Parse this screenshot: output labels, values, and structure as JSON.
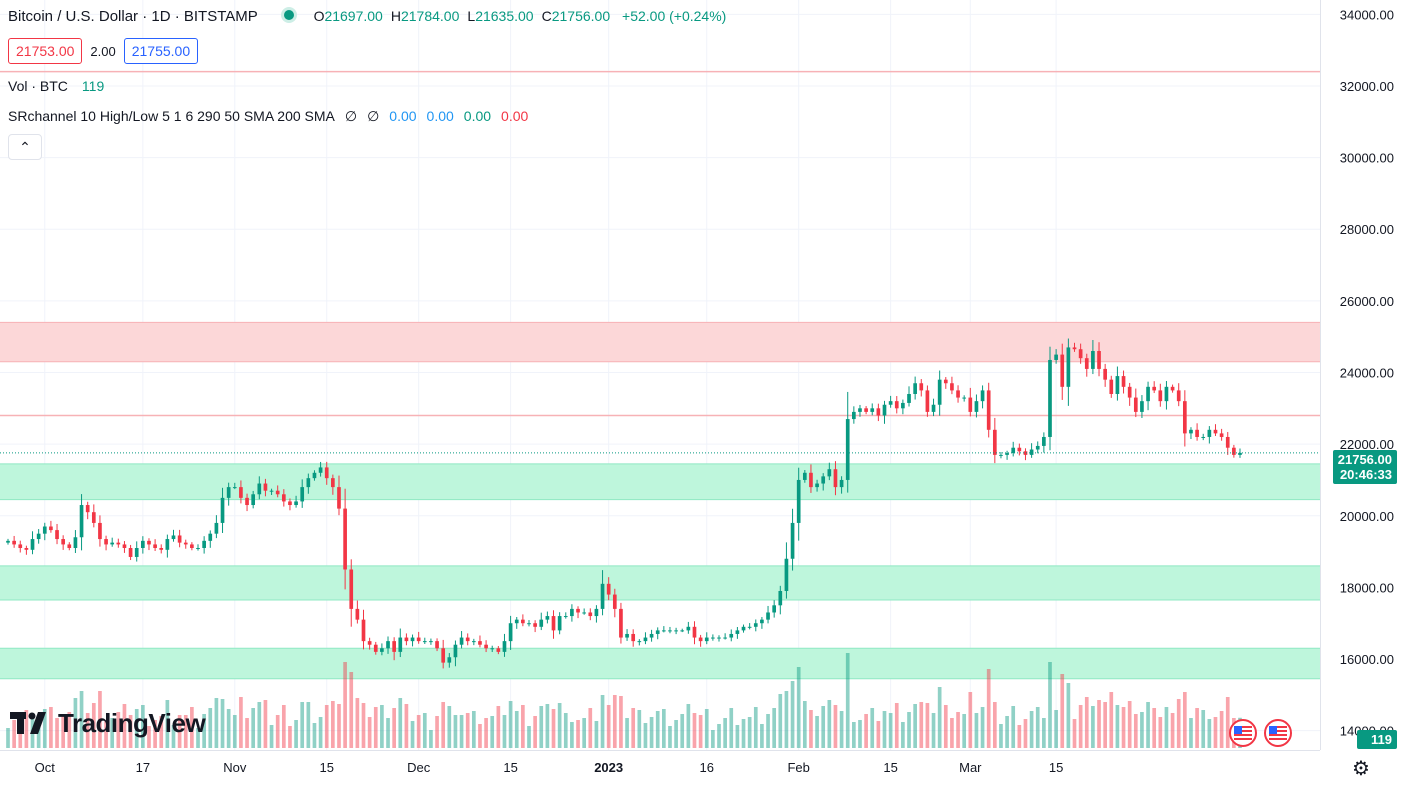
{
  "header": {
    "symbol": "Bitcoin / U.S. Dollar · 1D · BITSTAMP",
    "ohlc": [
      {
        "k": "O",
        "v": "21697.00"
      },
      {
        "k": "H",
        "v": "21784.00"
      },
      {
        "k": "L",
        "v": "21635.00"
      },
      {
        "k": "C",
        "v": "21756.00"
      }
    ],
    "change": "+52.00 (+0.24%)",
    "sell_price": "21753.00",
    "spread": "2.00",
    "buy_price": "21755.00",
    "collapse_icon": "chevron-up-icon",
    "colors": {
      "up": "#089981",
      "down": "#f23645",
      "buy": "#2962ff"
    }
  },
  "indicators": {
    "volume": {
      "label": "Vol · BTC",
      "value": "119"
    },
    "srchannel": {
      "label": "SRchannel 10 High/Low 5 1 6 290 50 SMA 200 SMA",
      "values": [
        {
          "text": "∅",
          "color": "#131722"
        },
        {
          "text": "∅",
          "color": "#131722"
        },
        {
          "text": "0.00",
          "color": "#2196f3"
        },
        {
          "text": "0.00",
          "color": "#2196f3"
        },
        {
          "text": "0.00",
          "color": "#089981"
        },
        {
          "text": "0.00",
          "color": "#f23645"
        }
      ]
    }
  },
  "branding": {
    "name": "TradingView"
  },
  "price_axis": {
    "last_price": "21756.00",
    "countdown": "20:46:33",
    "volume_tag": "119",
    "settings_icon": "gear-icon"
  },
  "event_icons": [
    "us-flag-icon",
    "us-flag-icon"
  ],
  "chart_data": {
    "type": "candlestick",
    "y_ticks": [
      "34000.00",
      "32000.00",
      "30000.00",
      "28000.00",
      "26000.00",
      "24000.00",
      "22000.00",
      "20000.00",
      "18000.00",
      "16000.00",
      "14000.00"
    ],
    "ylim": [
      13600,
      34400
    ],
    "x_ticks": [
      "Oct",
      "17",
      "Nov",
      "15",
      "Dec",
      "15",
      "2023",
      "16",
      "Feb",
      "15",
      "Mar",
      "15"
    ],
    "zones": [
      {
        "from": 24300,
        "to": 25400,
        "color": "#fcd5d6"
      },
      {
        "from": 20450,
        "to": 21450,
        "color": "#baf5da"
      },
      {
        "from": 17650,
        "to": 18600,
        "color": "#baf5da"
      },
      {
        "from": 15450,
        "to": 16300,
        "color": "#baf5da"
      }
    ],
    "levels": [
      {
        "value": 32400,
        "color": "#f7b2b6"
      },
      {
        "value": 22800,
        "color": "#f7b2b6"
      }
    ],
    "last_close": 21756,
    "closes": [
      19300,
      19200,
      19100,
      19050,
      19350,
      19500,
      19700,
      19600,
      19350,
      19200,
      19100,
      19400,
      20300,
      20100,
      19800,
      19350,
      19200,
      19250,
      19200,
      19100,
      18850,
      19100,
      19300,
      19200,
      19100,
      19050,
      19350,
      19450,
      19250,
      19200,
      19100,
      19100,
      19300,
      19500,
      19800,
      20500,
      20800,
      20800,
      20500,
      20300,
      20600,
      20900,
      20700,
      20700,
      20600,
      20400,
      20300,
      20400,
      20800,
      21050,
      21200,
      21350,
      21050,
      20800,
      20200,
      18500,
      17400,
      17100,
      16500,
      16400,
      16200,
      16300,
      16500,
      16200,
      16600,
      16500,
      16600,
      16500,
      16500,
      16500,
      16300,
      15900,
      16050,
      16400,
      16600,
      16500,
      16500,
      16400,
      16300,
      16300,
      16200,
      16500,
      17000,
      17100,
      17000,
      17000,
      16900,
      17100,
      17200,
      16800,
      17200,
      17200,
      17400,
      17300,
      17300,
      17200,
      17400,
      18100,
      17800,
      17400,
      16600,
      16700,
      16500,
      16500,
      16600,
      16700,
      16800,
      16800,
      16800,
      16800,
      16800,
      16900,
      16600,
      16500,
      16600,
      16600,
      16600,
      16600,
      16700,
      16800,
      16900,
      16900,
      17000,
      17100,
      17300,
      17500,
      17900,
      18800,
      19800,
      21000,
      21200,
      20800,
      20900,
      21100,
      21300,
      20800,
      21000,
      22700,
      22900,
      23000,
      22900,
      23000,
      22800,
      23100,
      23200,
      23000,
      23150,
      23400,
      23700,
      23500,
      22900,
      23100,
      23800,
      23700,
      23500,
      23300,
      23300,
      22900,
      23200,
      23500,
      22400,
      21700,
      21700,
      21750,
      21900,
      21800,
      21700,
      21850,
      21950,
      22200,
      24350,
      24500,
      23600,
      24700,
      24650,
      24400,
      24100,
      24600,
      24100,
      23800,
      23400,
      23900,
      23600,
      23300,
      22900,
      23200,
      23600,
      23500,
      23200,
      23600,
      23500,
      23200,
      22300,
      22400,
      22200,
      22200,
      22400,
      22300,
      22200,
      21900,
      21700,
      21756
    ]
  }
}
